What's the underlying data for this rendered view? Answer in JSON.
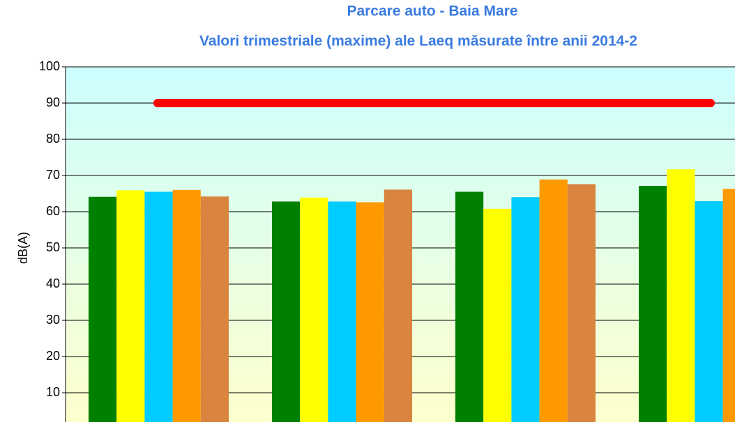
{
  "chart_data": {
    "type": "bar",
    "title": "Parcare auto - Baia Mare",
    "subtitle": "Valori trimestriale (maxime) ale  Laeq măsurate între anii 2014-2",
    "y_label": "dB(A)",
    "categories": [
      null,
      null,
      null,
      null
    ],
    "series": [
      {
        "color": "#008000",
        "values": [
          64.1,
          62.8,
          65.5,
          67.1
        ]
      },
      {
        "color": "#ffff00",
        "values": [
          65.9,
          63.9,
          60.8,
          71.7
        ]
      },
      {
        "color": "#00ccff",
        "values": [
          65.5,
          62.8,
          64.0,
          62.9
        ]
      },
      {
        "color": "#ff9900",
        "values": [
          66.0,
          62.6,
          68.9,
          66.3
        ]
      },
      {
        "color": "#d9843f",
        "values": [
          64.2,
          66.1,
          67.6,
          null
        ]
      }
    ],
    "limit_line": {
      "value": 90,
      "color": "#ff0000"
    },
    "ylim": [
      0,
      100
    ],
    "yticks": [
      10,
      20,
      30,
      40,
      50,
      60,
      70,
      80,
      90,
      100
    ],
    "grid": true
  }
}
